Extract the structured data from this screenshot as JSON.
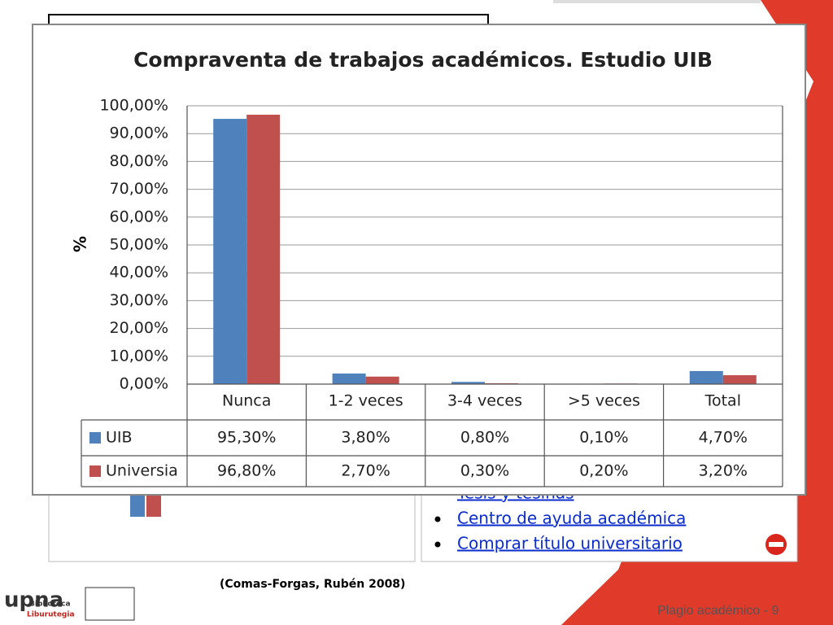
{
  "chart_data": {
    "type": "bar",
    "title": "Compraventa de trabajos académicos. Estudio UIB",
    "y_label": "%",
    "categories": [
      "Nunca",
      "1-2 veces",
      "3-4 veces",
      ">5 veces",
      "Total"
    ],
    "series": [
      {
        "name": "UIB",
        "color": "#4f81bd",
        "values": [
          95.3,
          3.8,
          0.8,
          0.1,
          4.7
        ],
        "value_labels": [
          "95,30%",
          "3,80%",
          "0,80%",
          "0,10%",
          "4,70%"
        ]
      },
      {
        "name": "Universia",
        "color": "#c0504d",
        "values": [
          96.8,
          2.7,
          0.3,
          0.2,
          3.2
        ],
        "value_labels": [
          "96,80%",
          "2,70%",
          "0,30%",
          "0,20%",
          "3,20%"
        ]
      }
    ],
    "ylim": [
      0,
      100
    ],
    "yticks": [
      {
        "value": 0,
        "label": "0,00%"
      },
      {
        "value": 10,
        "label": "10,00%"
      },
      {
        "value": 20,
        "label": "20,00%"
      },
      {
        "value": 30,
        "label": "30,00%"
      },
      {
        "value": 40,
        "label": "40,00%"
      },
      {
        "value": 50,
        "label": "50,00%"
      },
      {
        "value": 60,
        "label": "60,00%"
      },
      {
        "value": 70,
        "label": "70,00%"
      },
      {
        "value": 80,
        "label": "80,00%"
      },
      {
        "value": 90,
        "label": "90,00%"
      },
      {
        "value": 100,
        "label": "100,00%"
      }
    ],
    "grid": true
  },
  "slide": {
    "links": [
      "Tesis y tesinas",
      "Centro de ayuda académica",
      "Comprar título universitario"
    ],
    "citation": "(Comas-Forgas, Rubén 2008)",
    "footer": "Plagio académico - 9",
    "logo": {
      "name": "upna",
      "line1": "Biblioteca",
      "line2": "Liburutegia"
    }
  }
}
